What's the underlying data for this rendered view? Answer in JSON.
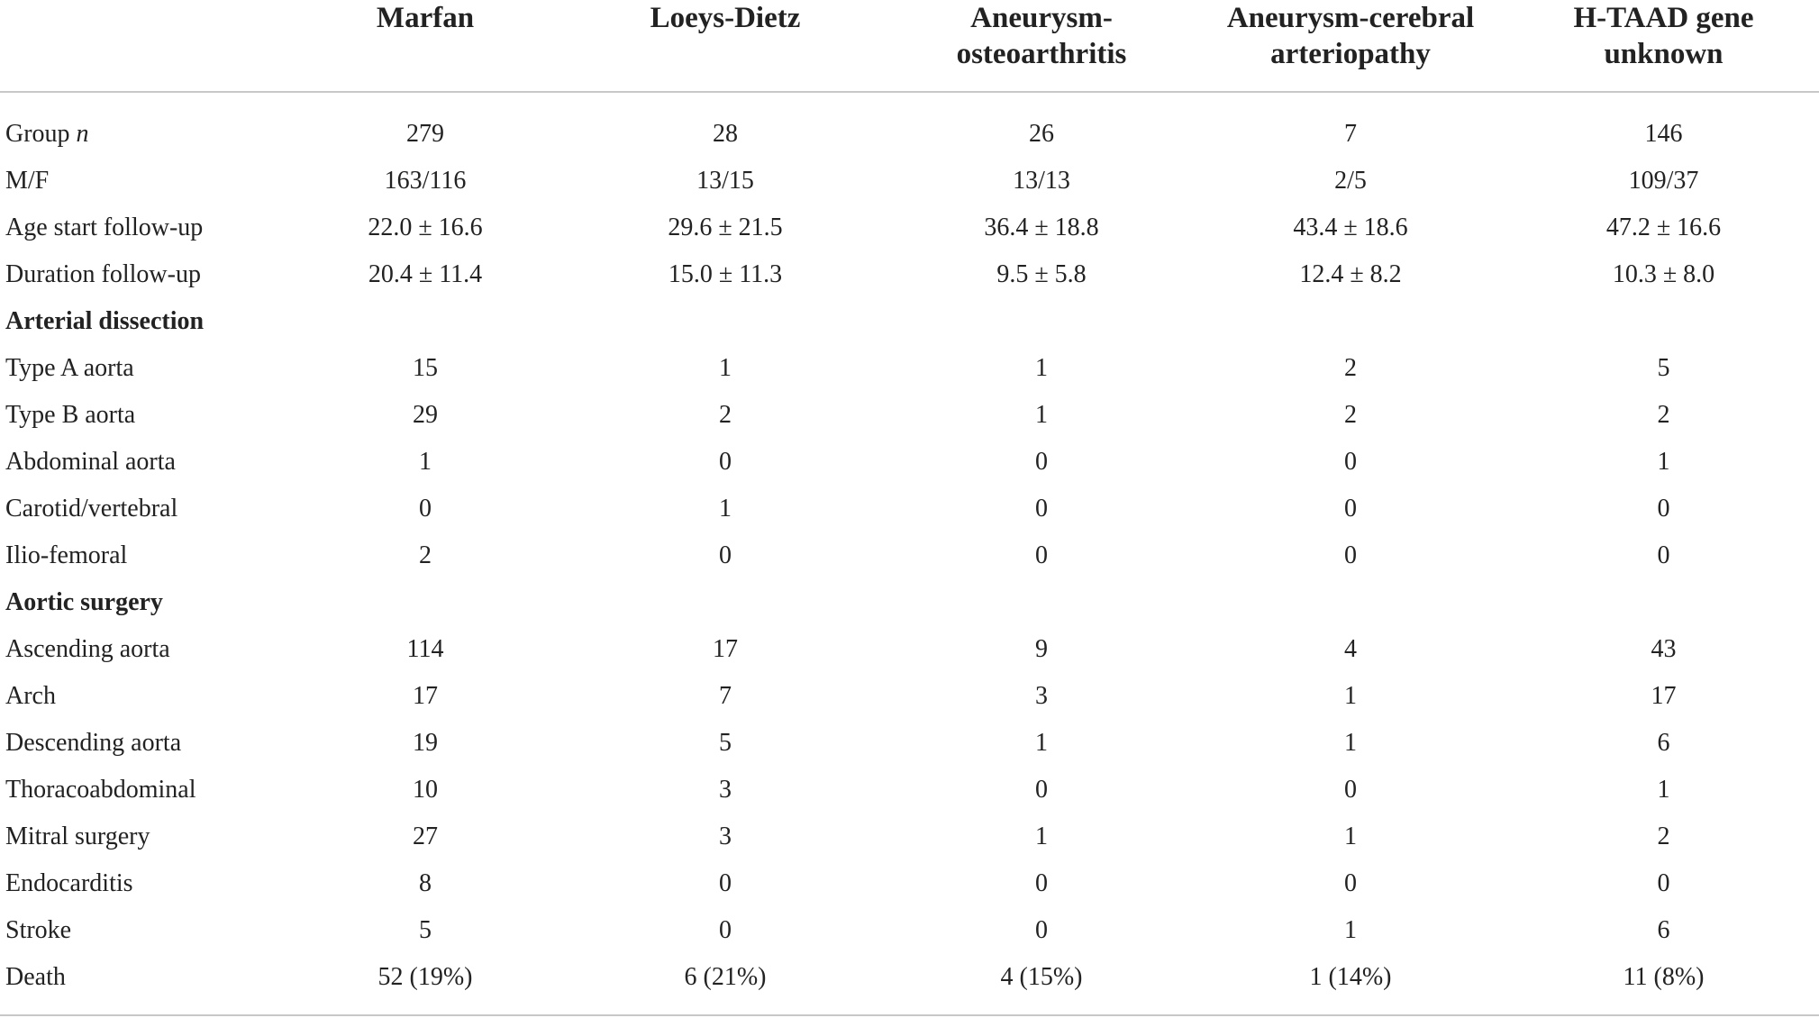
{
  "header": {
    "columns": [
      {
        "lines": [
          "",
          ""
        ]
      },
      {
        "lines": [
          "Marfan",
          ""
        ]
      },
      {
        "lines": [
          "Loeys-Dietz",
          ""
        ]
      },
      {
        "lines": [
          "Aneurysm-",
          "osteoarthritis"
        ]
      },
      {
        "lines": [
          "Aneurysm-cerebral",
          "arteriopathy"
        ]
      },
      {
        "lines": [
          "H-TAAD gene",
          "unknown"
        ]
      }
    ]
  },
  "rows": [
    {
      "label_main": "Group ",
      "label_italic": "n",
      "cells": [
        "279",
        "28",
        "26",
        "7",
        "146"
      ]
    },
    {
      "label_main": "M/F",
      "label_italic": "",
      "cells": [
        "163/116",
        "13/15",
        "13/13",
        "2/5",
        "109/37"
      ]
    },
    {
      "label_main": "Age start follow-up",
      "label_italic": "",
      "cells": [
        "22.0 ± 16.6",
        "29.6 ± 21.5",
        "36.4 ± 18.8",
        "43.4 ± 18.6",
        "47.2 ± 16.6"
      ]
    },
    {
      "label_main": "Duration follow-up",
      "label_italic": "",
      "cells": [
        "20.4 ± 11.4",
        "15.0 ± 11.3",
        "9.5 ± 5.8",
        "12.4 ± 8.2",
        "10.3 ± 8.0"
      ]
    },
    {
      "label_main": "Arterial dissection",
      "label_italic": "",
      "cells": [
        "",
        "",
        "",
        "",
        ""
      ]
    },
    {
      "label_main": "Type A aorta",
      "label_italic": "",
      "cells": [
        "15",
        "1",
        "1",
        "2",
        "5"
      ]
    },
    {
      "label_main": "Type B aorta",
      "label_italic": "",
      "cells": [
        "29",
        "2",
        "1",
        "2",
        "2"
      ]
    },
    {
      "label_main": "Abdominal aorta",
      "label_italic": "",
      "cells": [
        "1",
        "0",
        "0",
        "0",
        "1"
      ]
    },
    {
      "label_main": "Carotid/vertebral",
      "label_italic": "",
      "cells": [
        "0",
        "1",
        "0",
        "0",
        "0"
      ]
    },
    {
      "label_main": "Ilio-femoral",
      "label_italic": "",
      "cells": [
        "2",
        "0",
        "0",
        "0",
        "0"
      ]
    },
    {
      "label_main": "Aortic surgery",
      "label_italic": "",
      "cells": [
        "",
        "",
        "",
        "",
        ""
      ]
    },
    {
      "label_main": "Ascending aorta",
      "label_italic": "",
      "cells": [
        "114",
        "17",
        "9",
        "4",
        "43"
      ]
    },
    {
      "label_main": "Arch",
      "label_italic": "",
      "cells": [
        "17",
        "7",
        "3",
        "1",
        "17"
      ]
    },
    {
      "label_main": "Descending aorta",
      "label_italic": "",
      "cells": [
        "19",
        "5",
        "1",
        "1",
        "6"
      ]
    },
    {
      "label_main": "Thoracoabdominal",
      "label_italic": "",
      "cells": [
        "10",
        "3",
        "0",
        "0",
        "1"
      ]
    },
    {
      "label_main": "Mitral surgery",
      "label_italic": "",
      "cells": [
        "27",
        "3",
        "1",
        "1",
        "2"
      ]
    },
    {
      "label_main": "Endocarditis",
      "label_italic": "",
      "cells": [
        "8",
        "0",
        "0",
        "0",
        "0"
      ]
    },
    {
      "label_main": "Stroke",
      "label_italic": "",
      "cells": [
        "5",
        "0",
        "0",
        "1",
        "6"
      ]
    },
    {
      "label_main": "Death",
      "label_italic": "",
      "cells": [
        "52 (19%)",
        "6 (21%)",
        "4 (15%)",
        "1 (14%)",
        "11 (8%)"
      ]
    }
  ],
  "colors": {
    "text": "#222222",
    "rule": "#c8c8c8",
    "background": "#ffffff"
  }
}
